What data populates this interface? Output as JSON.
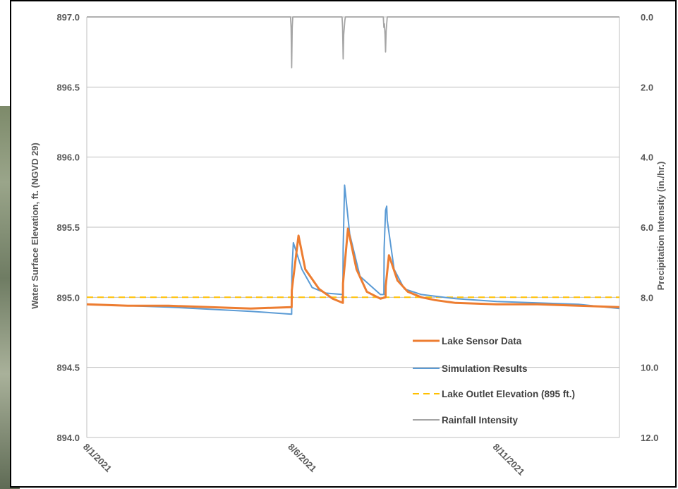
{
  "chart_data": {
    "type": "line",
    "title": "",
    "xlabel": "",
    "ylabel": "Water Surface Elevation, ft. (NGVD 29)",
    "y2label": "Precipitation Intensity (in./hr.)",
    "xlim": [
      "2021-08-01",
      "2021-08-14"
    ],
    "ylim": [
      894.0,
      897.0
    ],
    "y2lim": [
      12.0,
      0.0
    ],
    "y2_inverted": true,
    "x_ticks": [
      "8/1/2021",
      "8/6/2021",
      "8/11/2021"
    ],
    "y_ticks": [
      "894.0",
      "894.5",
      "895.0",
      "895.5",
      "896.0",
      "896.5",
      "897.0"
    ],
    "y2_ticks": [
      "12.0",
      "10.0",
      "8.0",
      "6.0",
      "4.0",
      "2.0",
      "0.0"
    ],
    "grid": "horizontal",
    "legend": "bottom-right",
    "series": [
      {
        "name": "Lake Sensor Data",
        "color": "#ED7D31",
        "axis": "left",
        "x": [
          "2021-08-01 00:00",
          "2021-08-02 00:00",
          "2021-08-03 00:00",
          "2021-08-04 00:00",
          "2021-08-05 00:00",
          "2021-08-06 00:00",
          "2021-08-06 00:05",
          "2021-08-06 04:00",
          "2021-08-06 08:00",
          "2021-08-06 16:00",
          "2021-08-07 00:00",
          "2021-08-07 06:00",
          "2021-08-07 06:05",
          "2021-08-07 09:00",
          "2021-08-07 14:00",
          "2021-08-07 20:00",
          "2021-08-08 04:00",
          "2021-08-08 07:00",
          "2021-08-08 07:05",
          "2021-08-08 09:00",
          "2021-08-08 14:00",
          "2021-08-08 20:00",
          "2021-08-09 04:00",
          "2021-08-09 12:00",
          "2021-08-10 00:00",
          "2021-08-11 00:00",
          "2021-08-12 00:00",
          "2021-08-13 00:00",
          "2021-08-14 00:00"
        ],
        "y": [
          894.95,
          894.94,
          894.94,
          894.93,
          894.92,
          894.93,
          895.05,
          895.44,
          895.2,
          895.06,
          894.99,
          894.96,
          895.1,
          895.49,
          895.2,
          895.04,
          894.99,
          895.0,
          895.08,
          895.3,
          895.12,
          895.04,
          895.0,
          894.98,
          894.96,
          894.95,
          894.95,
          894.94,
          894.93
        ]
      },
      {
        "name": "Simulation Results",
        "color": "#5B9BD5",
        "axis": "left",
        "x": [
          "2021-08-01 00:00",
          "2021-08-03 00:00",
          "2021-08-05 00:00",
          "2021-08-06 00:00",
          "2021-08-06 00:10",
          "2021-08-06 01:00",
          "2021-08-06 06:00",
          "2021-08-06 12:00",
          "2021-08-06 20:00",
          "2021-08-07 06:00",
          "2021-08-07 06:10",
          "2021-08-07 07:00",
          "2021-08-07 10:00",
          "2021-08-07 16:00",
          "2021-08-08 04:00",
          "2021-08-08 06:00",
          "2021-08-08 06:10",
          "2021-08-08 07:00",
          "2021-08-08 07:40",
          "2021-08-08 08:00",
          "2021-08-08 12:00",
          "2021-08-08 18:00",
          "2021-08-09 04:00",
          "2021-08-10 00:00",
          "2021-08-11 00:00",
          "2021-08-12 00:00",
          "2021-08-13 00:00",
          "2021-08-14 00:00"
        ],
        "y": [
          894.95,
          894.93,
          894.9,
          894.88,
          895.2,
          895.39,
          895.2,
          895.07,
          895.03,
          895.02,
          895.35,
          895.8,
          895.45,
          895.15,
          895.02,
          895.02,
          895.35,
          895.62,
          895.65,
          895.55,
          895.2,
          895.06,
          895.02,
          894.99,
          894.97,
          894.96,
          894.95,
          894.92
        ]
      },
      {
        "name": "Lake Outlet Elevation (895 ft.)",
        "color": "#FFC000",
        "axis": "left",
        "dashed": true,
        "x": [
          "2021-08-01 00:00",
          "2021-08-14 00:00"
        ],
        "y": [
          895.0,
          895.0
        ]
      },
      {
        "name": "Rainfall Intensity",
        "color": "#A5A5A5",
        "axis": "right",
        "x": [
          "2021-08-01 00:00",
          "2021-08-05 23:20",
          "2021-08-05 23:40",
          "2021-08-06 00:00",
          "2021-08-06 00:20",
          "2021-08-06 00:40",
          "2021-08-07 05:30",
          "2021-08-07 05:50",
          "2021-08-07 06:10",
          "2021-08-07 06:30",
          "2021-08-07 06:50",
          "2021-08-07 07:10",
          "2021-08-07 07:30",
          "2021-08-08 05:40",
          "2021-08-08 06:00",
          "2021-08-08 06:20",
          "2021-08-08 06:40",
          "2021-08-08 07:00",
          "2021-08-08 07:20",
          "2021-08-08 07:40",
          "2021-08-08 08:00",
          "2021-08-14 00:00"
        ],
        "y": [
          0.0,
          0.0,
          0.3,
          1.45,
          0.3,
          0.0,
          0.0,
          0.3,
          1.2,
          0.5,
          0.3,
          0.1,
          0.0,
          0.0,
          0.3,
          0.2,
          0.5,
          1.0,
          0.4,
          0.2,
          0.0,
          0.0
        ]
      }
    ]
  }
}
